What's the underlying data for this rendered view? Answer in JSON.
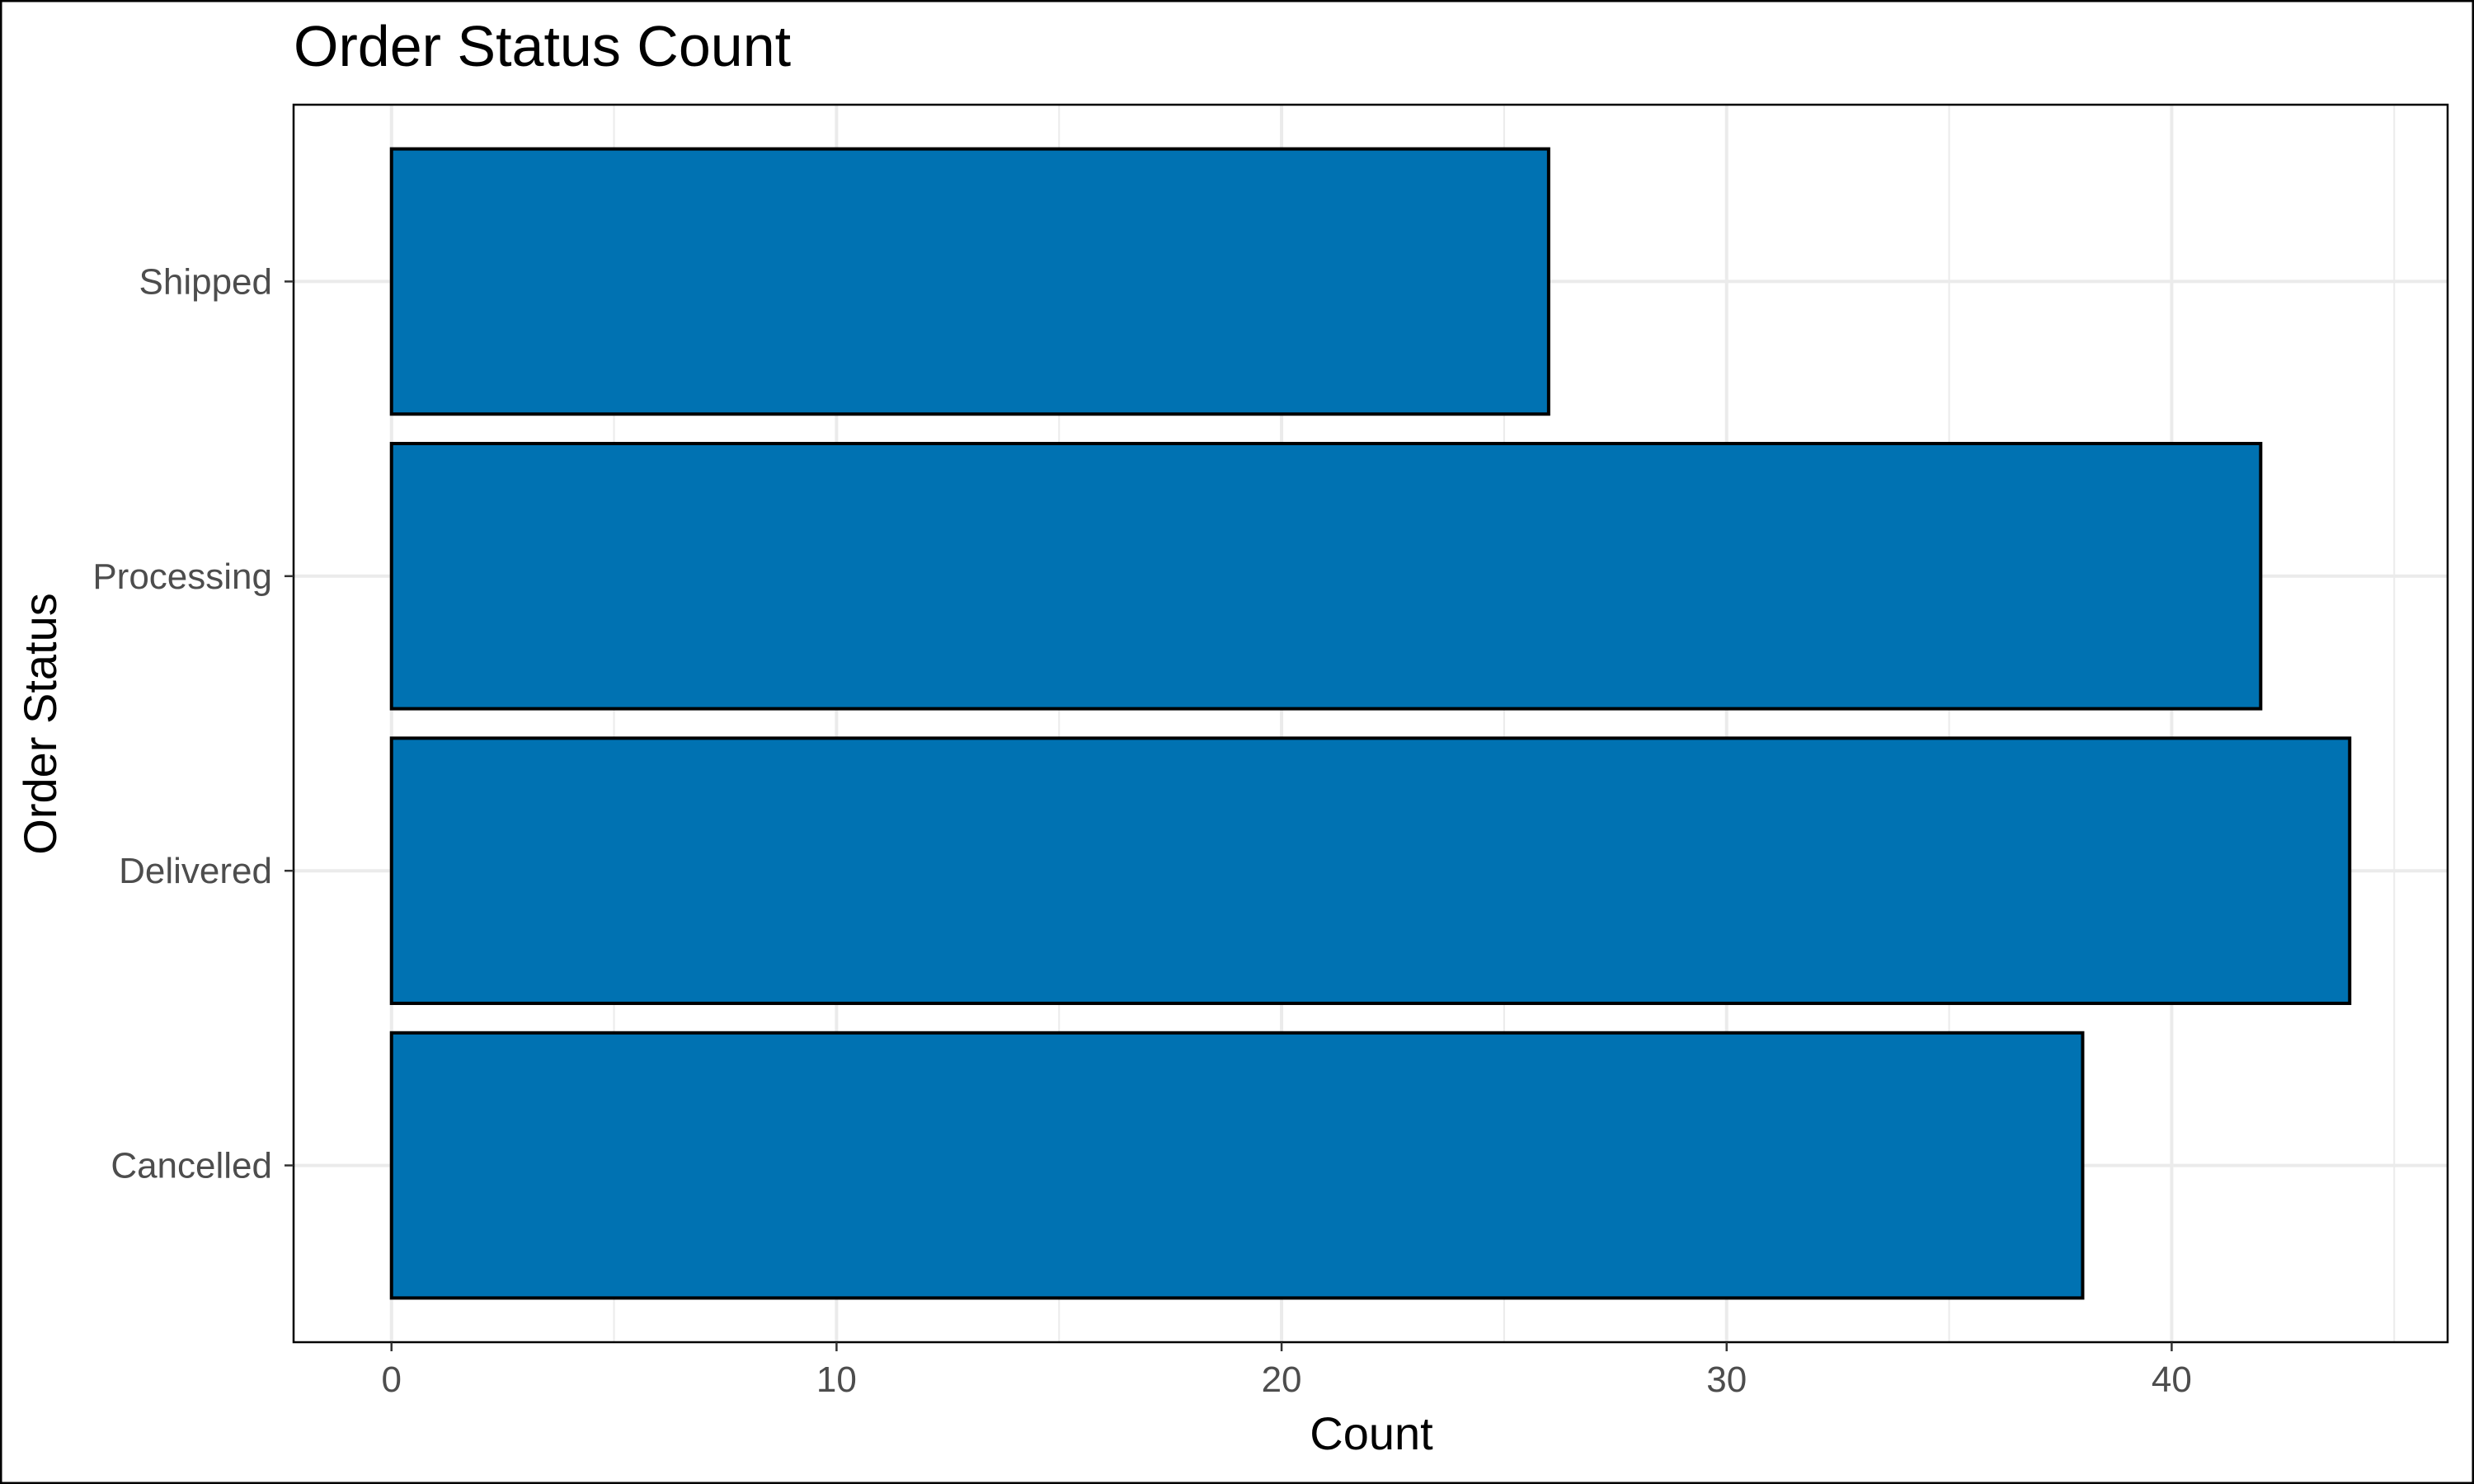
{
  "chart_data": {
    "type": "bar",
    "orientation": "horizontal",
    "title": "Order Status Count",
    "xlabel": "Count",
    "ylabel": "Order Status",
    "categories": [
      "Cancelled",
      "Delivered",
      "Processing",
      "Shipped"
    ],
    "values": [
      38,
      44,
      42,
      26
    ],
    "xlim": [
      -2.2,
      46.2
    ],
    "x_ticks": [
      0,
      10,
      20,
      30,
      40
    ],
    "grid": true,
    "legend": "none",
    "colors": {
      "bar_fill": "#0072B2",
      "bar_stroke": "#000000",
      "grid": "#ebebeb",
      "panel_border": "#000000",
      "tick_text": "#4d4d4d"
    }
  }
}
